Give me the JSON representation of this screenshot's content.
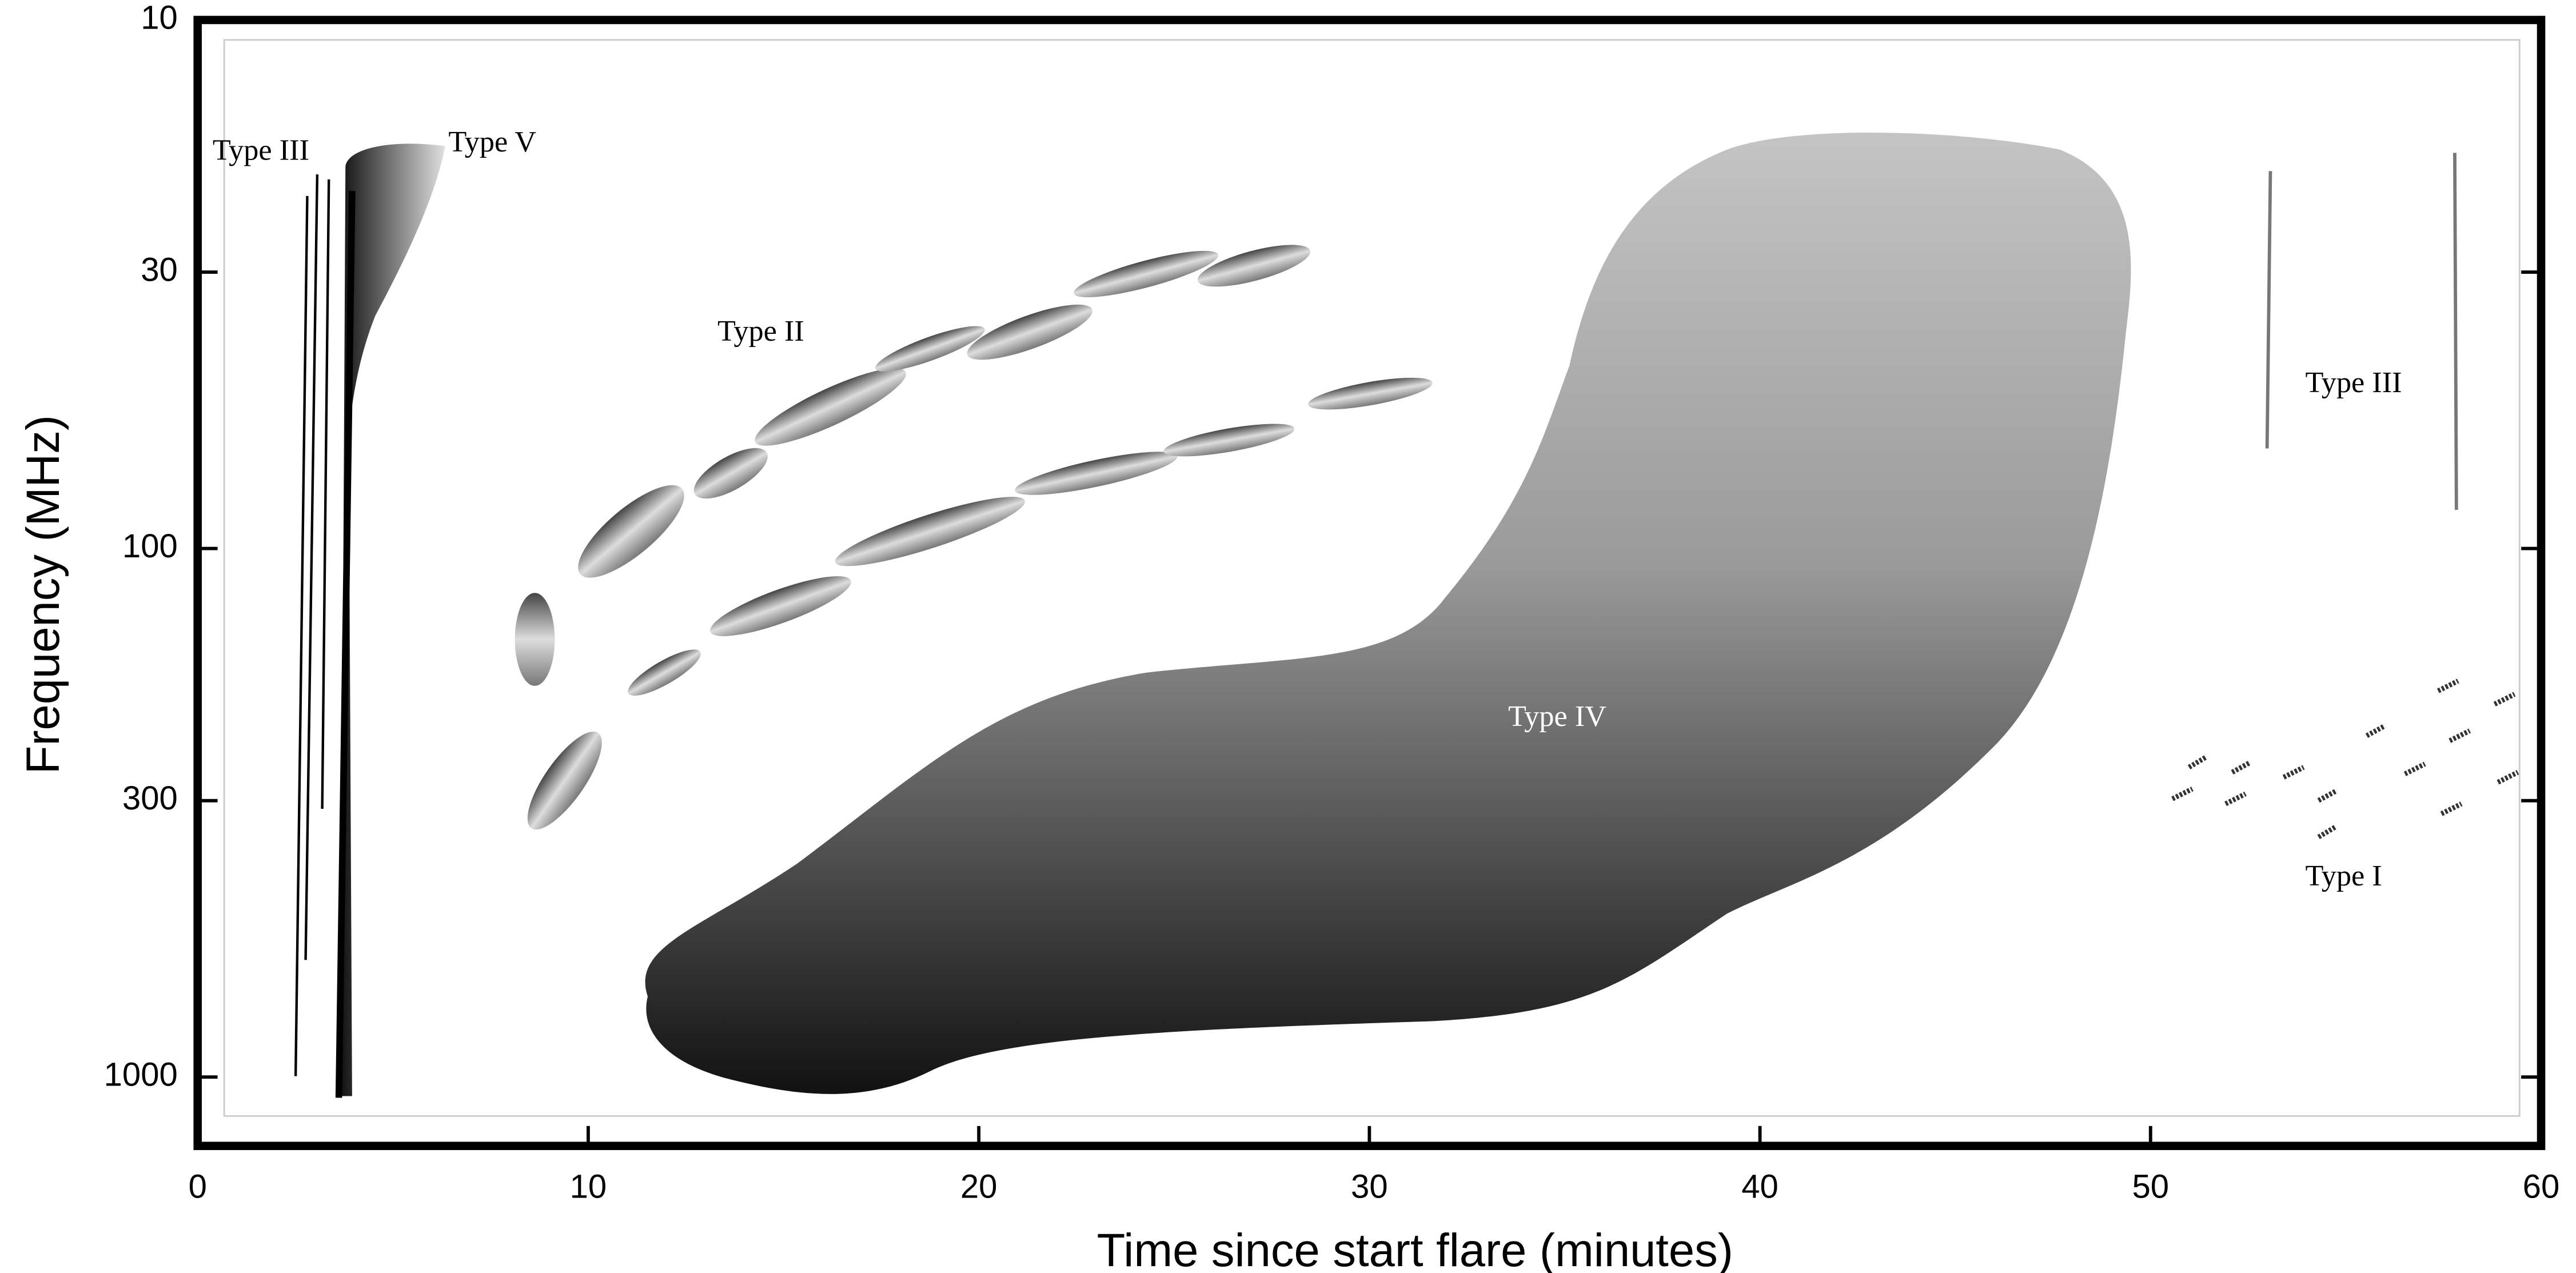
{
  "chart_data": {
    "type": "spectrum",
    "xlabel": "Time since start flare (minutes)",
    "ylabel": "Frequency (MHz)",
    "xlim": [
      0,
      60
    ],
    "xticks": [
      0,
      10,
      20,
      30,
      40,
      50,
      60
    ],
    "ylim": [
      10,
      1350
    ],
    "yticks": [
      10,
      30,
      100,
      300,
      1000
    ],
    "y_scale": "log",
    "y_inverted": true,
    "annotations": [
      "Type III",
      "Type V",
      "Type II",
      "Type IV",
      "Type III",
      "Type I"
    ]
  }
}
